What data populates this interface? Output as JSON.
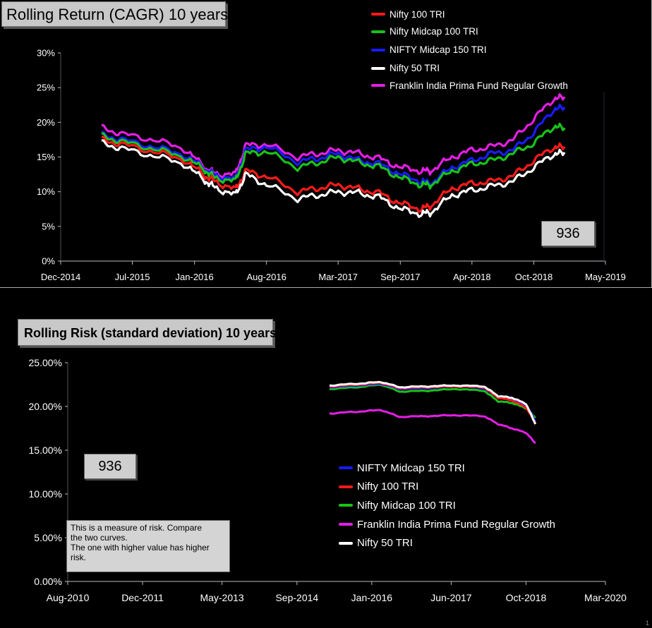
{
  "colors": {
    "nifty100": "#ff1a1a",
    "midcap100": "#19c219",
    "midcap150": "#1a1aff",
    "nifty50": "#ffffff",
    "franklin": "#e51ee5",
    "panel_border": "#a8a8a8",
    "axis_text": "#ffffff"
  },
  "chart_data": [
    {
      "type": "line",
      "title": "Rolling Return (CAGR) 10 years",
      "value_box": "936",
      "yticks": [
        "0%",
        "5%",
        "10%",
        "15%",
        "20%",
        "25%",
        "30%"
      ],
      "ylim": [
        0,
        30
      ],
      "xticks": [
        "Dec-2014",
        "Jul-2015",
        "Jan-2016",
        "Aug-2016",
        "Mar-2017",
        "Sep-2017",
        "Apr-2018",
        "Oct-2018",
        "May-2019"
      ],
      "x_dates": [
        "2015-04-01",
        "2015-06-01",
        "2015-09-01",
        "2015-12-01",
        "2016-02-01",
        "2016-03-01",
        "2016-05-01",
        "2016-06-01",
        "2016-08-01",
        "2016-11-01",
        "2017-01-01",
        "2017-03-01",
        "2017-05-01",
        "2017-07-01",
        "2017-09-01",
        "2017-11-01",
        "2017-12-01",
        "2018-02-01",
        "2018-04-01",
        "2018-06-01",
        "2018-08-01",
        "2018-10-01",
        "2018-12-01",
        "2019-01-01"
      ],
      "legend_position": "top-right",
      "series": [
        {
          "name": "Nifty 100 TRI",
          "key": "nifty100",
          "values": [
            17.5,
            16.8,
            15.8,
            14.6,
            12.3,
            11.5,
            10.3,
            13.0,
            12.2,
            10.0,
            10.5,
            11.0,
            10.4,
            9.8,
            8.3,
            7.5,
            8.0,
            10.5,
            11.2,
            11.5,
            12.3,
            14.5,
            16.5,
            16.3
          ]
        },
        {
          "name": "Nifty Midcap 100 TRI",
          "key": "midcap100",
          "values": [
            18.0,
            17.2,
            16.2,
            15.0,
            13.1,
            12.0,
            11.5,
            15.5,
            15.8,
            13.5,
            14.2,
            15.0,
            14.2,
            13.6,
            12.0,
            11.0,
            11.0,
            13.0,
            14.0,
            14.5,
            15.5,
            17.0,
            19.5,
            19.0
          ]
        },
        {
          "name": "NIFTY Midcap 150 TRI",
          "key": "midcap150",
          "values": [
            18.2,
            17.5,
            16.5,
            15.3,
            13.3,
            12.4,
            11.8,
            16.0,
            16.5,
            14.3,
            14.8,
            15.5,
            14.5,
            14.0,
            12.5,
            11.5,
            11.2,
            13.5,
            14.5,
            15.5,
            16.0,
            18.5,
            22.0,
            22.0
          ]
        },
        {
          "name": "Nifty 50 TRI",
          "key": "nifty50",
          "values": [
            17.0,
            16.2,
            15.2,
            14.0,
            11.6,
            10.6,
            9.5,
            12.5,
            11.0,
            9.0,
            9.5,
            10.0,
            9.8,
            9.2,
            7.5,
            6.8,
            7.0,
            9.5,
            10.2,
            10.8,
            11.5,
            13.5,
            15.5,
            15.5
          ]
        },
        {
          "name": "Franklin India Prima Fund Regular Growth",
          "key": "franklin",
          "values": [
            19.2,
            18.3,
            17.5,
            16.2,
            13.5,
            12.6,
            12.5,
            16.7,
            16.8,
            15.0,
            15.5,
            16.0,
            15.5,
            14.8,
            13.5,
            13.0,
            13.0,
            15.0,
            16.0,
            16.5,
            17.5,
            20.5,
            23.5,
            23.5
          ]
        }
      ]
    },
    {
      "type": "line",
      "title": "Rolling Risk (standard deviation) 10 years",
      "value_box": "936",
      "yticks": [
        "0.00%",
        "5.00%",
        "10.00%",
        "15.00%",
        "20.00%",
        "25.00%"
      ],
      "ylim": [
        0,
        25
      ],
      "xticks": [
        "Aug-2010",
        "Dec-2011",
        "May-2013",
        "Sep-2014",
        "Jan-2016",
        "Jun-2017",
        "Oct-2018",
        "Mar-2020"
      ],
      "x_dates": [
        "2015-04-01",
        "2015-10-01",
        "2016-03-01",
        "2016-07-01",
        "2017-01-01",
        "2017-07-01",
        "2018-01-01",
        "2018-04-01",
        "2018-07-01",
        "2018-10-01",
        "2018-12-01"
      ],
      "legend_position": "middle-right",
      "note": [
        "This is a measure of risk.  Compare",
        "the two curves.",
        "The one with higher value has higher",
        "risk."
      ],
      "legend_order": [
        "midcap150",
        "nifty100",
        "midcap100",
        "franklin",
        "nifty50"
      ],
      "series": [
        {
          "name": "NIFTY Midcap 150 TRI",
          "key": "midcap150",
          "values": [
            22.2,
            22.4,
            22.6,
            22.0,
            22.1,
            22.3,
            22.1,
            21.0,
            20.8,
            20.2,
            18.3
          ]
        },
        {
          "name": "Nifty 100 TRI",
          "key": "nifty100",
          "values": [
            22.3,
            22.5,
            22.7,
            22.1,
            22.2,
            22.3,
            22.2,
            21.0,
            20.7,
            19.9,
            18.1
          ]
        },
        {
          "name": "Nifty Midcap 100 TRI",
          "key": "midcap100",
          "values": [
            22.0,
            22.2,
            22.5,
            21.7,
            21.8,
            22.0,
            21.8,
            20.6,
            20.4,
            19.8,
            18.7
          ]
        },
        {
          "name": "Franklin India Prima Fund Regular Growth",
          "key": "franklin",
          "values": [
            19.2,
            19.4,
            19.6,
            18.8,
            18.9,
            19.0,
            18.9,
            18.0,
            17.5,
            17.0,
            15.8
          ]
        },
        {
          "name": "Nifty 50 TRI",
          "key": "nifty50",
          "values": [
            22.4,
            22.6,
            22.8,
            22.2,
            22.3,
            22.4,
            22.3,
            21.2,
            21.0,
            20.3,
            18.0
          ]
        }
      ]
    }
  ],
  "page_mark": "1"
}
